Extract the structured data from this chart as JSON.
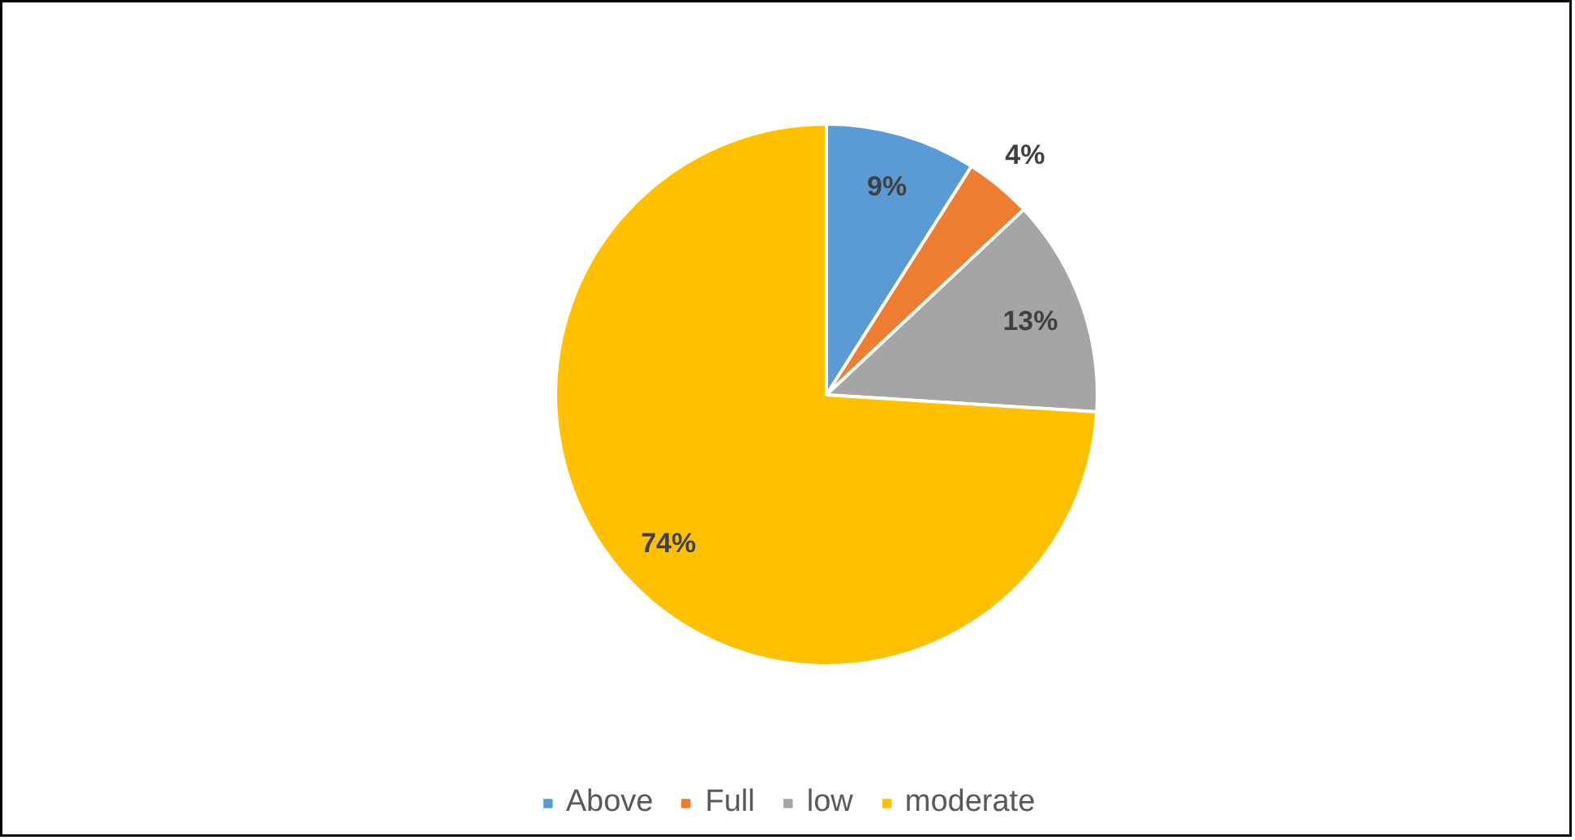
{
  "chart_data": {
    "type": "pie",
    "categories": [
      "Above",
      "Full",
      "low",
      "moderate"
    ],
    "values": [
      9,
      4,
      13,
      74
    ],
    "colors": [
      "#5b9bd5",
      "#ed7d31",
      "#a5a5a5",
      "#ffc000"
    ],
    "value_labels": [
      "9%",
      "4%",
      "13%",
      "74%"
    ],
    "legend": "bottom"
  }
}
